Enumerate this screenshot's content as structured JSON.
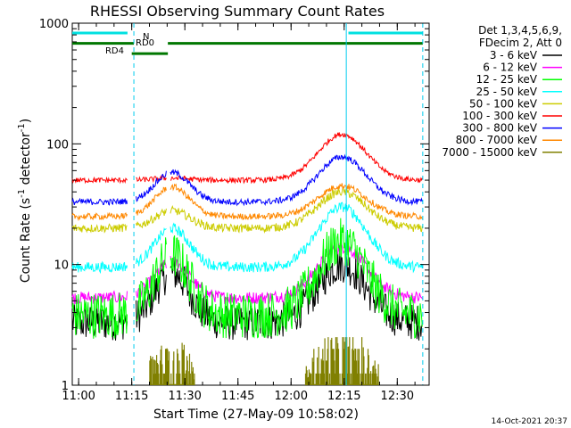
{
  "chart_data": {
    "type": "line",
    "title": "RHESSI Observing Summary Count Rates",
    "xlabel": "Start Time (27-May-09 10:58:02)",
    "ylabel_main": "Count Rate (s",
    "ylabel_sup1": "-1",
    "ylabel_mid": " detector",
    "ylabel_sup2": "-1",
    "ylabel_end": ")",
    "yscale": "log",
    "ylim": [
      1,
      1000
    ],
    "xlim_minutes": [
      10.97,
      12.65
    ],
    "x_ticks": [
      {
        "t": 11.0,
        "label": "11:00"
      },
      {
        "t": 11.25,
        "label": "11:15"
      },
      {
        "t": 11.5,
        "label": "11:30"
      },
      {
        "t": 11.75,
        "label": "11:45"
      },
      {
        "t": 12.0,
        "label": "12:00"
      },
      {
        "t": 12.25,
        "label": "12:15"
      },
      {
        "t": 12.5,
        "label": "12:30"
      }
    ],
    "y_ticks": [
      {
        "v": 1,
        "label": "1"
      },
      {
        "v": 10,
        "label": "10"
      },
      {
        "v": 100,
        "label": "100"
      },
      {
        "v": 1000,
        "label": "1000"
      }
    ],
    "legend": {
      "placement": "right",
      "header1": "Det 1,3,4,5,6,9,",
      "header2": "FDecim 2, Att 0",
      "entries": [
        {
          "label": "3 - 6 keV",
          "color": "#000000"
        },
        {
          "label": "6 - 12 keV",
          "color": "#ff00ff"
        },
        {
          "label": "12 - 25 keV",
          "color": "#00ff00"
        },
        {
          "label": "25 - 50 keV",
          "color": "#00ffff"
        },
        {
          "label": "50 - 100 keV",
          "color": "#cccc00"
        },
        {
          "label": "100 - 300 keV",
          "color": "#ff0000"
        },
        {
          "label": "300 - 800 keV",
          "color": "#0000ff"
        },
        {
          "label": "800 - 7000 keV",
          "color": "#ff8800"
        },
        {
          "label": "7000 - 15000 keV",
          "color": "#808000"
        }
      ]
    },
    "state_bars": [
      {
        "label": "N",
        "color": "#00e0e0",
        "intervals": [
          [
            10.97,
            11.23
          ],
          [
            12.27,
            12.62
          ]
        ],
        "level": 830
      },
      {
        "label": "RD0",
        "color": "#007700",
        "intervals": [
          [
            10.97,
            11.26
          ],
          [
            11.42,
            12.62
          ]
        ],
        "level": 680
      },
      {
        "label": "RD4",
        "color": "#007700",
        "intervals": [
          [
            11.25,
            11.42
          ]
        ],
        "level": 560
      }
    ],
    "vertical_lines": [
      {
        "t": 11.26,
        "color": "#00ccee",
        "style": "dashed"
      },
      {
        "t": 12.26,
        "color": "#00ccee",
        "style": "solid"
      },
      {
        "t": 12.62,
        "color": "#00ccee",
        "style": "dashed"
      }
    ],
    "data_gaps": [
      [
        11.23,
        11.27
      ],
      [
        11.415,
        11.43
      ]
    ],
    "series": [
      {
        "name": "3 - 6 keV",
        "color": "#000000",
        "shape": "bump",
        "base": 3.3,
        "peak1": 8.5,
        "peak2": 10.0,
        "noise": 0.35
      },
      {
        "name": "6 - 12 keV",
        "color": "#ff00ff",
        "shape": "bump",
        "base": 5.3,
        "peak1": 10.5,
        "peak2": 14.0,
        "noise": 0.12
      },
      {
        "name": "12 - 25 keV",
        "color": "#00ff00",
        "shape": "bump",
        "base": 3.8,
        "peak1": 12.0,
        "peak2": 15.5,
        "noise": 0.45
      },
      {
        "name": "25 - 50 keV",
        "color": "#00ffff",
        "shape": "bump",
        "base": 9.5,
        "peak1": 20.0,
        "peak2": 30.0,
        "noise": 0.1
      },
      {
        "name": "50 - 100 keV",
        "color": "#cccc00",
        "shape": "bump",
        "base": 20.0,
        "peak1": 28.0,
        "peak2": 40.0,
        "noise": 0.08
      },
      {
        "name": "100 - 300 keV",
        "color": "#ff0000",
        "shape": "bump",
        "base": 50.0,
        "peak1": 52.0,
        "peak2": 120.0,
        "noise": 0.05
      },
      {
        "name": "300 - 800 keV",
        "color": "#0000ff",
        "shape": "bump",
        "base": 33.0,
        "peak1": 58.0,
        "peak2": 78.0,
        "noise": 0.06
      },
      {
        "name": "800 - 7000 keV",
        "color": "#ff8800",
        "shape": "bump",
        "base": 25.0,
        "peak1": 44.0,
        "peak2": 45.0,
        "noise": 0.06
      },
      {
        "name": "7000 - 15000 keV",
        "color": "#808000",
        "shape": "step",
        "base": 1.0,
        "peak1": 2.0,
        "peak2": 2.6,
        "noise": 0.25
      }
    ]
  },
  "footer": {
    "timestamp": "14-Oct-2021 20:37"
  }
}
